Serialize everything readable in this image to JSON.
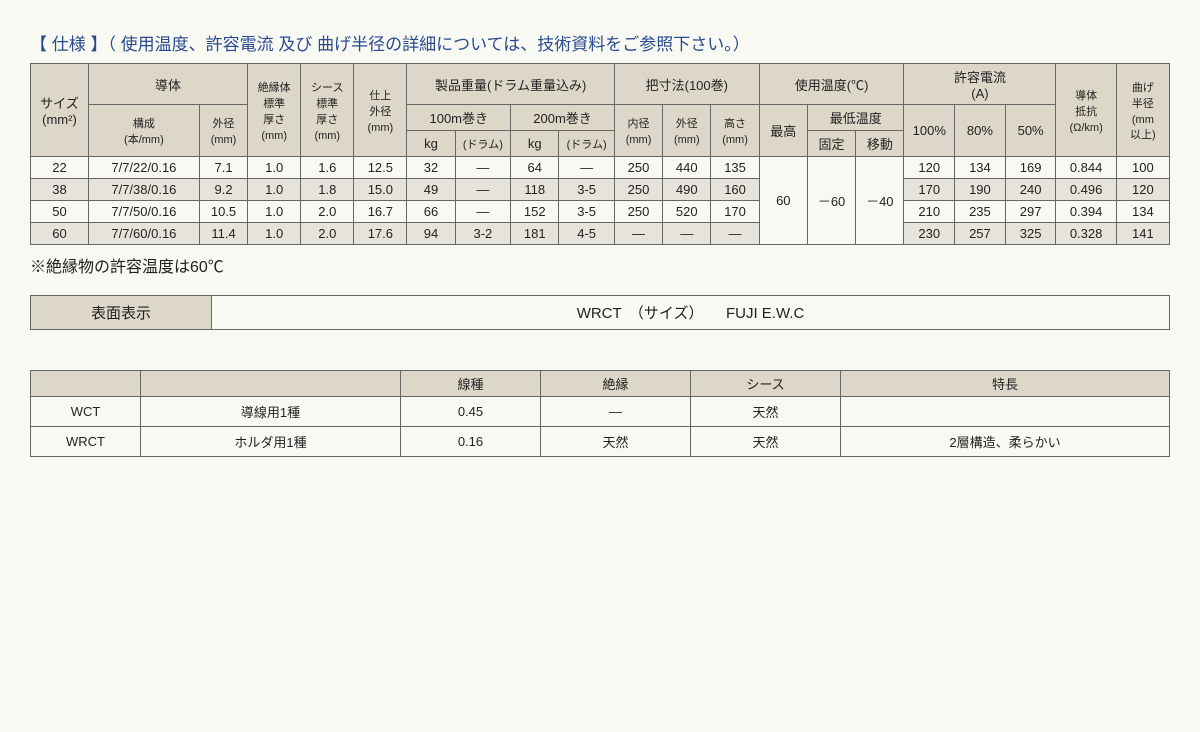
{
  "title": "【 仕様 】（ 使用温度、許容電流 及び 曲げ半径の詳細については、技術資料をご参照下さい。）",
  "spec": {
    "headers": {
      "size": "サイズ\n(mm²)",
      "conductor": "導体",
      "composition": "構成\n(本/mm)",
      "od1": "外径\n(mm)",
      "ins_th": "絶縁体\n標準\n厚さ\n(mm)",
      "sheath_th": "シース\n標準\n厚さ\n(mm)",
      "finish_od": "仕上\n外径\n(mm)",
      "weight": "製品重量(ドラム重量込み)",
      "w100": "100m巻き",
      "w200": "200m巻き",
      "kg": "kg",
      "drum": "(ドラム)",
      "dims": "把寸法(100巻)",
      "id": "内径\n(mm)",
      "odd": "外径\n(mm)",
      "h": "高さ\n(mm)",
      "temp": "使用温度(℃)",
      "tmax": "最高",
      "tmin": "最低温度",
      "tfix": "固定",
      "tmov": "移動",
      "allow": "許容電流\n(A)",
      "p100": "100%",
      "p80": "80%",
      "p50": "50%",
      "res": "導体\n抵抗\n(Ω/km)",
      "bend": "曲げ\n半径\n(mm\n以上)"
    },
    "rows": [
      {
        "size": "22",
        "comp": "7/7/22/0.16",
        "od": "7.1",
        "ins": "1.0",
        "sh": "1.6",
        "fin": "12.5",
        "kg1": "32",
        "dr1": "—",
        "kg2": "64",
        "dr2": "—",
        "id": "250",
        "odd": "440",
        "h": "135",
        "a100": "120",
        "a80": "134",
        "a50": "169",
        "res": "0.844",
        "bend": "100",
        "alt": false
      },
      {
        "size": "38",
        "comp": "7/7/38/0.16",
        "od": "9.2",
        "ins": "1.0",
        "sh": "1.8",
        "fin": "15.0",
        "kg1": "49",
        "dr1": "—",
        "kg2": "118",
        "dr2": "3-5",
        "id": "250",
        "odd": "490",
        "h": "160",
        "a100": "170",
        "a80": "190",
        "a50": "240",
        "res": "0.496",
        "bend": "120",
        "alt": true
      },
      {
        "size": "50",
        "comp": "7/7/50/0.16",
        "od": "10.5",
        "ins": "1.0",
        "sh": "2.0",
        "fin": "16.7",
        "kg1": "66",
        "dr1": "—",
        "kg2": "152",
        "dr2": "3-5",
        "id": "250",
        "odd": "520",
        "h": "170",
        "a100": "210",
        "a80": "235",
        "a50": "297",
        "res": "0.394",
        "bend": "134",
        "alt": false
      },
      {
        "size": "60",
        "comp": "7/7/60/0.16",
        "od": "11.4",
        "ins": "1.0",
        "sh": "2.0",
        "fin": "17.6",
        "kg1": "94",
        "dr1": "3-2",
        "kg2": "181",
        "dr2": "4-5",
        "id": "—",
        "odd": "—",
        "h": "—",
        "a100": "230",
        "a80": "257",
        "a50": "325",
        "res": "0.328",
        "bend": "141",
        "alt": true
      }
    ],
    "temp_max": "60",
    "temp_fix": "－60",
    "temp_mov": "－40"
  },
  "note": "※絶縁物の許容温度は60℃",
  "surface": {
    "label": "表面表示",
    "content": "WRCT　（サイズ）　　FUJI E.W.C"
  },
  "types": {
    "headers": [
      "",
      "",
      "線種",
      "絶縁",
      "シース",
      "特長"
    ],
    "col0_blank": "",
    "rows": [
      {
        "name": "WCT",
        "grade": "導線用1種",
        "wire": "0.45",
        "ins": "—",
        "sheath": "天然",
        "feat": ""
      },
      {
        "name": "WRCT",
        "grade": "ホルダ用1種",
        "wire": "0.16",
        "ins": "天然",
        "sheath": "天然",
        "feat": "2層構造、柔らかい"
      }
    ]
  }
}
